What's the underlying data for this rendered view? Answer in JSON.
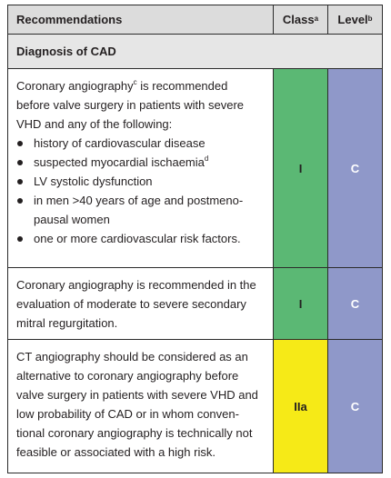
{
  "header": {
    "recommendations": "Recommendations",
    "class_label": "Class",
    "class_sup": "a",
    "level_label": "Level",
    "level_sup": "b"
  },
  "section": {
    "title": "Diagnosis of CAD"
  },
  "rows": [
    {
      "intro_pre": "Coronary angiography",
      "intro_sup": "c",
      "intro_line2": " is recommended",
      "intro_rest": "before valve surgery in patients with severe VHD and any of the following:",
      "bullets": [
        "history of cardiovascular disease",
        "suspected myocardial ischaemia",
        "LV systolic dysfunction",
        "in men >40 years of age and postmeno-pausal women",
        "one or more cardiovascular risk factors."
      ],
      "bullet2_sup": "d",
      "class": "I",
      "level": "C"
    },
    {
      "text": "Coronary angiography is recommended in the evaluation of moderate to severe secondary mitral regurgitation.",
      "class": "I",
      "level": "C"
    },
    {
      "text": "CT angiography should be considered as an alternative to coronary angiography before valve surgery in patients with severe VHD and low probability of CAD or in whom conven-tional coronary angiography is technically not feasible or associated with a high risk.",
      "class": "IIa",
      "level": "C"
    }
  ],
  "colors": {
    "class_I": "#5bb874",
    "class_IIa": "#f6ea17",
    "level": "#8f98c9"
  }
}
